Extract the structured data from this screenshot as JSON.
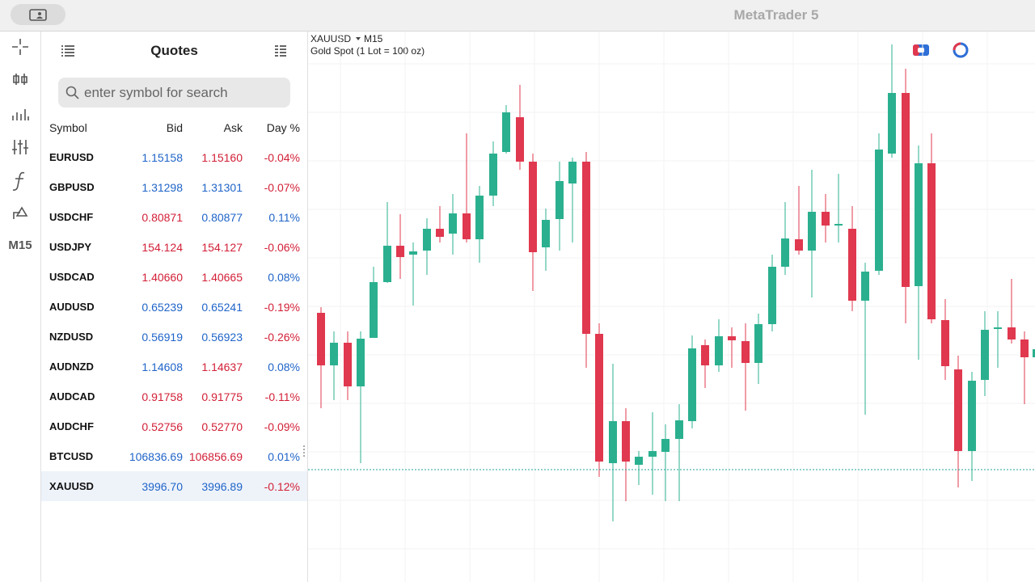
{
  "app": {
    "title": "MetaTrader 5"
  },
  "sidebar": {
    "timeframe": "M15"
  },
  "quotes": {
    "title": "Quotes",
    "search_placeholder": "enter symbol for search",
    "columns": [
      "Symbol",
      "Bid",
      "Ask",
      "Day %"
    ],
    "selected_row": 11,
    "rows": [
      {
        "symbol": "EURUSD",
        "bid": "1.15158",
        "ask": "1.15160",
        "day": "-0.04%",
        "bid_color": "#1f64c8",
        "ask_color": "#d21f36",
        "day_color": "#d21f36"
      },
      {
        "symbol": "GBPUSD",
        "bid": "1.31298",
        "ask": "1.31301",
        "day": "-0.07%",
        "bid_color": "#1f64c8",
        "ask_color": "#1f64c8",
        "day_color": "#d21f36"
      },
      {
        "symbol": "USDCHF",
        "bid": "0.80871",
        "ask": "0.80877",
        "day": "0.11%",
        "bid_color": "#d21f36",
        "ask_color": "#1f64c8",
        "day_color": "#1f64c8"
      },
      {
        "symbol": "USDJPY",
        "bid": "154.124",
        "ask": "154.127",
        "day": "-0.06%",
        "bid_color": "#d21f36",
        "ask_color": "#d21f36",
        "day_color": "#d21f36"
      },
      {
        "symbol": "USDCAD",
        "bid": "1.40660",
        "ask": "1.40665",
        "day": "0.08%",
        "bid_color": "#d21f36",
        "ask_color": "#d21f36",
        "day_color": "#1f64c8"
      },
      {
        "symbol": "AUDUSD",
        "bid": "0.65239",
        "ask": "0.65241",
        "day": "-0.19%",
        "bid_color": "#1f64c8",
        "ask_color": "#1f64c8",
        "day_color": "#d21f36"
      },
      {
        "symbol": "NZDUSD",
        "bid": "0.56919",
        "ask": "0.56923",
        "day": "-0.26%",
        "bid_color": "#1f64c8",
        "ask_color": "#1f64c8",
        "day_color": "#d21f36"
      },
      {
        "symbol": "AUDNZD",
        "bid": "1.14608",
        "ask": "1.14637",
        "day": "0.08%",
        "bid_color": "#1f64c8",
        "ask_color": "#d21f36",
        "day_color": "#1f64c8"
      },
      {
        "symbol": "AUDCAD",
        "bid": "0.91758",
        "ask": "0.91775",
        "day": "-0.11%",
        "bid_color": "#d21f36",
        "ask_color": "#d21f36",
        "day_color": "#d21f36"
      },
      {
        "symbol": "AUDCHF",
        "bid": "0.52756",
        "ask": "0.52770",
        "day": "-0.09%",
        "bid_color": "#d21f36",
        "ask_color": "#d21f36",
        "day_color": "#d21f36"
      },
      {
        "symbol": "BTCUSD",
        "bid": "106836.69",
        "ask": "106856.69",
        "day": "0.01%",
        "bid_color": "#1f64c8",
        "ask_color": "#d21f36",
        "day_color": "#1f64c8"
      },
      {
        "symbol": "XAUUSD",
        "bid": "3996.70",
        "ask": "3996.89",
        "day": "-0.12%",
        "bid_color": "#1f64c8",
        "ask_color": "#1f64c8",
        "day_color": "#d21f36"
      }
    ]
  },
  "chart": {
    "symbol": "XAUUSD",
    "timeframe": "M15",
    "description": "Gold Spot (1 Lot = 100 oz)"
  }
}
